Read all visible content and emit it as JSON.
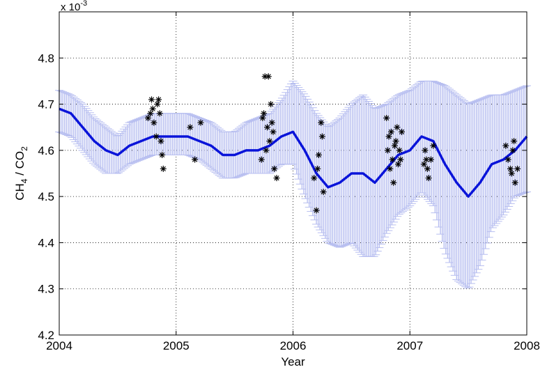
{
  "chart_data": {
    "type": "line",
    "title": "",
    "xlabel": "Year",
    "ylabel": {
      "prefix": "CH",
      "sub1": "4",
      "mid": " / CO",
      "sub2": "2"
    },
    "exponent_label": {
      "base": "x 10",
      "exp": "-3"
    },
    "xlim": [
      2004,
      2008
    ],
    "ylim": [
      4.2,
      4.9
    ],
    "xticks": [
      2004,
      2005,
      2006,
      2007,
      2008
    ],
    "xtick_labels": [
      "2004",
      "2005",
      "2006",
      "2007",
      "2008"
    ],
    "yticks": [
      4.2,
      4.3,
      4.4,
      4.5,
      4.6,
      4.7,
      4.8
    ],
    "ytick_labels": [
      "4.2",
      "4.3",
      "4.4",
      "4.5",
      "4.6",
      "4.7",
      "4.8"
    ],
    "grid": true,
    "colors": {
      "line": "#0a14d9",
      "errorbar": "#b7bef0",
      "markers": "#000000",
      "grid": "#000000"
    },
    "series": [
      {
        "kind": "line_with_errorbars",
        "x": [
          2004.0,
          2004.1,
          2004.2,
          2004.3,
          2004.4,
          2004.5,
          2004.6,
          2004.7,
          2004.8,
          2004.9,
          2005.0,
          2005.1,
          2005.2,
          2005.3,
          2005.4,
          2005.5,
          2005.6,
          2005.7,
          2005.8,
          2005.9,
          2006.0,
          2006.1,
          2006.2,
          2006.3,
          2006.4,
          2006.5,
          2006.6,
          2006.7,
          2006.8,
          2006.9,
          2007.0,
          2007.1,
          2007.2,
          2007.3,
          2007.4,
          2007.5,
          2007.6,
          2007.7,
          2007.8,
          2007.9,
          2008.0
        ],
        "y": [
          4.69,
          4.68,
          4.65,
          4.62,
          4.6,
          4.59,
          4.61,
          4.62,
          4.63,
          4.63,
          4.63,
          4.63,
          4.62,
          4.61,
          4.59,
          4.59,
          4.6,
          4.6,
          4.61,
          4.63,
          4.64,
          4.6,
          4.55,
          4.52,
          4.53,
          4.55,
          4.55,
          4.53,
          4.56,
          4.59,
          4.6,
          4.63,
          4.62,
          4.57,
          4.53,
          4.5,
          4.53,
          4.57,
          4.58,
          4.6,
          4.63
        ],
        "lower": [
          4.64,
          4.63,
          4.6,
          4.57,
          4.55,
          4.55,
          4.57,
          4.58,
          4.59,
          4.59,
          4.59,
          4.59,
          4.58,
          4.56,
          4.54,
          4.54,
          4.55,
          4.55,
          4.55,
          4.57,
          4.57,
          4.5,
          4.44,
          4.4,
          4.39,
          4.4,
          4.37,
          4.37,
          4.42,
          4.46,
          4.48,
          4.51,
          4.48,
          4.38,
          4.32,
          4.3,
          4.35,
          4.43,
          4.46,
          4.5,
          4.51
        ],
        "upper": [
          4.73,
          4.72,
          4.7,
          4.67,
          4.65,
          4.63,
          4.66,
          4.67,
          4.68,
          4.68,
          4.68,
          4.68,
          4.67,
          4.66,
          4.64,
          4.64,
          4.66,
          4.67,
          4.68,
          4.71,
          4.75,
          4.72,
          4.68,
          4.65,
          4.67,
          4.7,
          4.72,
          4.69,
          4.7,
          4.72,
          4.73,
          4.75,
          4.75,
          4.74,
          4.72,
          4.7,
          4.71,
          4.72,
          4.72,
          4.73,
          4.74
        ]
      },
      {
        "kind": "markers",
        "x": [
          2004.76,
          2004.78,
          2004.79,
          2004.8,
          2004.81,
          2004.83,
          2004.84,
          2004.85,
          2004.86,
          2004.87,
          2004.88,
          2004.89,
          2005.12,
          2005.16,
          2005.21,
          2005.73,
          2005.74,
          2005.75,
          2005.76,
          2005.77,
          2005.78,
          2005.79,
          2005.8,
          2005.81,
          2005.82,
          2005.83,
          2005.84,
          2005.86,
          2006.18,
          2006.2,
          2006.21,
          2006.22,
          2006.24,
          2006.25,
          2006.26,
          2006.8,
          2006.81,
          2006.82,
          2006.83,
          2006.84,
          2006.85,
          2006.86,
          2006.87,
          2006.88,
          2006.89,
          2006.9,
          2006.91,
          2006.92,
          2006.93,
          2007.12,
          2007.13,
          2007.14,
          2007.15,
          2007.16,
          2007.18,
          2007.2,
          2007.82,
          2007.84,
          2007.86,
          2007.87,
          2007.88,
          2007.89,
          2007.9,
          2007.92
        ],
        "y": [
          4.67,
          4.68,
          4.71,
          4.69,
          4.66,
          4.63,
          4.7,
          4.71,
          4.68,
          4.62,
          4.59,
          4.56,
          4.65,
          4.58,
          4.66,
          4.58,
          4.67,
          4.68,
          4.76,
          4.6,
          4.65,
          4.76,
          4.62,
          4.7,
          4.66,
          4.64,
          4.56,
          4.54,
          4.54,
          4.47,
          4.56,
          4.59,
          4.66,
          4.63,
          4.51,
          4.67,
          4.6,
          4.63,
          4.56,
          4.64,
          4.58,
          4.53,
          4.61,
          4.62,
          4.65,
          4.57,
          4.6,
          4.58,
          4.64,
          4.57,
          4.6,
          4.58,
          4.56,
          4.54,
          4.58,
          4.61,
          4.61,
          4.58,
          4.56,
          4.55,
          4.6,
          4.62,
          4.53,
          4.56
        ]
      }
    ]
  }
}
